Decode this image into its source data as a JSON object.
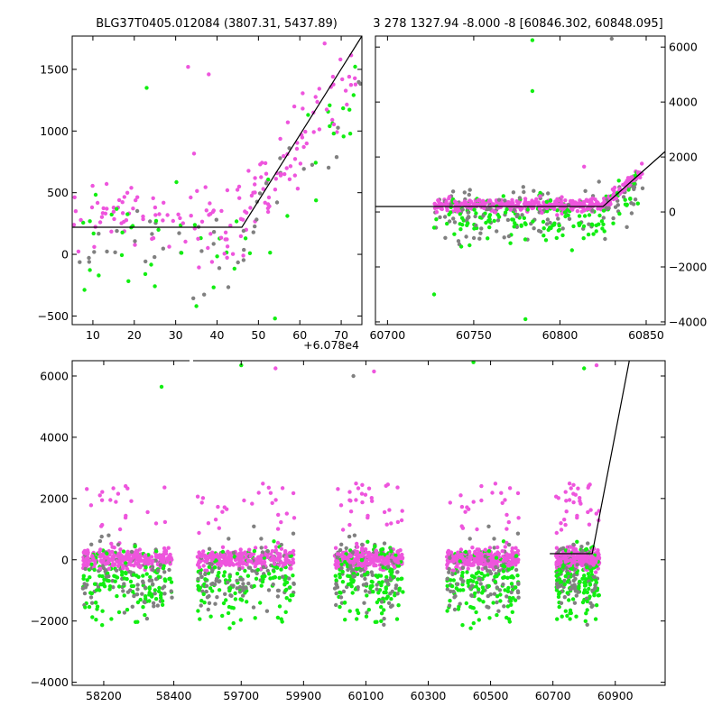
{
  "colors": {
    "magenta": "#ee55dd",
    "green": "#11ee11",
    "gray": "#808080",
    "model_line": "#000000"
  },
  "chart_data": [
    {
      "id": "top-left",
      "type": "scatter",
      "title": "BLG37T0405.012084 (3807.31, 5437.89)",
      "xlim": [
        5,
        75
      ],
      "ylim": [
        -570,
        1770
      ],
      "xticks": [
        10,
        20,
        30,
        40,
        50,
        60,
        70
      ],
      "xtick_labels": [
        "10",
        "20",
        "30",
        "40",
        "50",
        "60",
        "70"
      ],
      "yticks": [
        -500,
        0,
        500,
        1000,
        1500
      ],
      "ytick_labels": [
        "−500",
        "0",
        "500",
        "1000",
        "1500"
      ],
      "offset_label": "+6.078e4",
      "model": [
        [
          5,
          220
        ],
        [
          46,
          220
        ],
        [
          75,
          1770
        ]
      ],
      "sample_points": [
        {
          "x": 33,
          "y": 1520,
          "c": "magenta"
        },
        {
          "x": 38,
          "y": 1460,
          "c": "magenta"
        },
        {
          "x": 23,
          "y": 1350,
          "c": "green"
        },
        {
          "x": 62,
          "y": 1130,
          "c": "green"
        },
        {
          "x": 68,
          "y": 1440,
          "c": "magenta"
        },
        {
          "x": 66,
          "y": 1710,
          "c": "magenta"
        },
        {
          "x": 35,
          "y": -420,
          "c": "green"
        },
        {
          "x": 54,
          "y": -520,
          "c": "green"
        }
      ]
    },
    {
      "id": "top-right",
      "type": "scatter",
      "title": "3 278 1327.94 -8.000 -8 [60846.302, 60848.095]",
      "xlim": [
        60693,
        60861
      ],
      "ylim": [
        -4100,
        6400
      ],
      "xticks": [
        60700,
        60750,
        60800,
        60850
      ],
      "xtick_labels": [
        "60700",
        "60750",
        "60800",
        "60850"
      ],
      "yticks": [
        -4000,
        -2000,
        0,
        2000,
        4000,
        6000
      ],
      "ytick_labels": [
        "−4000",
        "−2000",
        "0",
        "2000",
        "4000",
        "6000"
      ],
      "model": [
        [
          60693,
          200
        ],
        [
          60825,
          200
        ],
        [
          60861,
          2200
        ]
      ],
      "sample_points": [
        {
          "x": 60784,
          "y": 6250,
          "c": "green"
        },
        {
          "x": 60784,
          "y": 4400,
          "c": "green"
        },
        {
          "x": 60830,
          "y": 6300,
          "c": "gray"
        },
        {
          "x": 60814,
          "y": 1650,
          "c": "magenta"
        },
        {
          "x": 60727,
          "y": -3000,
          "c": "green"
        },
        {
          "x": 60780,
          "y": -3900,
          "c": "green"
        }
      ]
    },
    {
      "id": "bottom",
      "type": "scatter",
      "title": "",
      "ylim": [
        -4100,
        6500
      ],
      "segments": [
        {
          "xlim": [
            58110,
            58450
          ]
        },
        {
          "xlim": [
            59540,
            61060
          ]
        }
      ],
      "xticks": [
        58200,
        58400,
        59700,
        59900,
        60100,
        60300,
        60500,
        60700,
        60900
      ],
      "xtick_labels": [
        "58200",
        "58400",
        "59700",
        "59900",
        "60100",
        "60300",
        "60500",
        "60700",
        "60900"
      ],
      "yticks": [
        -4000,
        -2000,
        0,
        2000,
        4000,
        6000
      ],
      "ytick_labels": [
        "−4000",
        "−2000",
        "0",
        "2000",
        "4000",
        "6000"
      ],
      "clusters": [
        {
          "start": 58140,
          "end": 58395
        },
        {
          "start": 59560,
          "end": 59870
        },
        {
          "start": 60000,
          "end": 60220
        },
        {
          "start": 60360,
          "end": 60590
        },
        {
          "start": 60710,
          "end": 60850
        }
      ],
      "model": [
        [
          60690,
          200
        ],
        [
          60826,
          200
        ],
        [
          60945,
          6500
        ]
      ],
      "sample_points": [
        {
          "x": 58365,
          "y": 5650,
          "c": "green"
        },
        {
          "x": 59700,
          "y": 6350,
          "c": "green"
        },
        {
          "x": 59810,
          "y": 6250,
          "c": "magenta"
        },
        {
          "x": 60060,
          "y": 6000,
          "c": "gray"
        },
        {
          "x": 60126,
          "y": 6150,
          "c": "magenta"
        },
        {
          "x": 60445,
          "y": 6450,
          "c": "green"
        },
        {
          "x": 60800,
          "y": 6250,
          "c": "green"
        },
        {
          "x": 60840,
          "y": 6350,
          "c": "magenta"
        }
      ]
    }
  ]
}
